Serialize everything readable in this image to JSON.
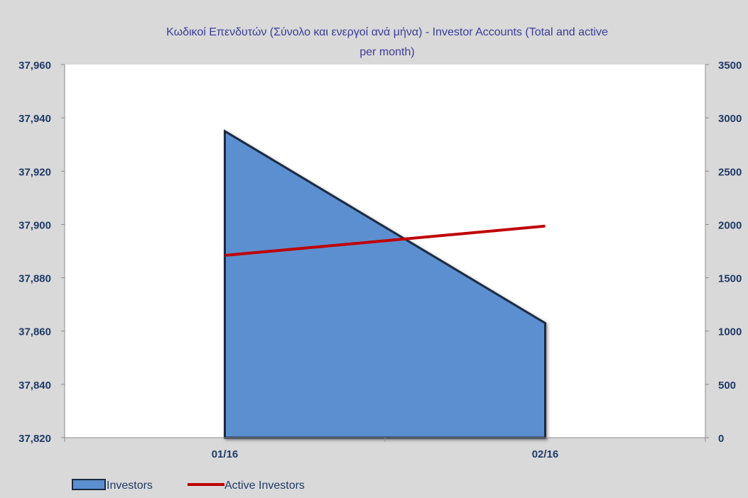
{
  "chart_data": {
    "type": "area",
    "title_line1": "Κωδικοί Επενδυτών (Σύνολο και ενεργοί ανά μήνα) - Investor Accounts (Total and active",
    "title_line2": "per month)",
    "categories": [
      "01/16",
      "02/16"
    ],
    "series": [
      {
        "name": "Investors",
        "type": "area",
        "axis": "left",
        "values": [
          37935,
          37863
        ],
        "color": "#5b8fd0"
      },
      {
        "name": "Active Investors",
        "type": "line",
        "axis": "right",
        "values": [
          1710,
          1985
        ],
        "color": "#c00000"
      }
    ],
    "left_axis": {
      "ylim": [
        37820,
        37960
      ],
      "ticks": [
        "37,820",
        "37,840",
        "37,860",
        "37,880",
        "37,900",
        "37,920",
        "37,940",
        "37,960"
      ]
    },
    "right_axis": {
      "ylim": [
        0,
        3500
      ],
      "ticks": [
        "0",
        "500",
        "1000",
        "1500",
        "2000",
        "2500",
        "3000",
        "3500"
      ]
    },
    "grid": false,
    "legend_position": "bottom-left",
    "colors": {
      "background": "#d9d9d9",
      "plot_background": "#ffffff",
      "axis_text": "#1f3a66",
      "title_text": "#3b3b9a",
      "area_fill": "#5b8fd0",
      "area_edge": "#1a2a40",
      "line": "#c00000"
    }
  }
}
